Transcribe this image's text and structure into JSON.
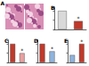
{
  "panel_a": {
    "label": "A"
  },
  "chart_data": [
    {
      "type": "bar",
      "label": "B",
      "categories": [
        null,
        null
      ],
      "values": [
        1.0,
        0.45
      ],
      "colors": [
        "#d9d9d9",
        "#c0392b"
      ],
      "ylim": [
        0,
        1.2
      ],
      "yticks": [
        0,
        0.5,
        1
      ],
      "tick_labels": false,
      "annotation": "*"
    },
    {
      "type": "bar",
      "label": "C",
      "categories": [
        null,
        null
      ],
      "values": [
        1.0,
        0.5
      ],
      "colors": [
        "#c0392b",
        "#e8a0a0"
      ],
      "ylim": [
        0,
        1.2
      ],
      "yticks": [
        0,
        0.5,
        1
      ],
      "tick_labels": false,
      "annotation": "*"
    },
    {
      "type": "bar",
      "label": "D",
      "categories": [
        null,
        null
      ],
      "values": [
        1.0,
        0.6
      ],
      "colors": [
        "#c0392b",
        "#8fb3dd"
      ],
      "ylim": [
        0,
        1.2
      ],
      "yticks": [
        0,
        0.5,
        1
      ],
      "tick_labels": false,
      "annotation": "*"
    },
    {
      "type": "bar",
      "label": "E",
      "categories": [
        null,
        null
      ],
      "values": [
        0.4,
        1.0
      ],
      "colors": [
        "#8fb3dd",
        "#c0392b"
      ],
      "ylim": [
        0,
        1.2
      ],
      "yticks": [
        0,
        0.5,
        1
      ],
      "tick_labels": false,
      "annotation": "*"
    }
  ]
}
